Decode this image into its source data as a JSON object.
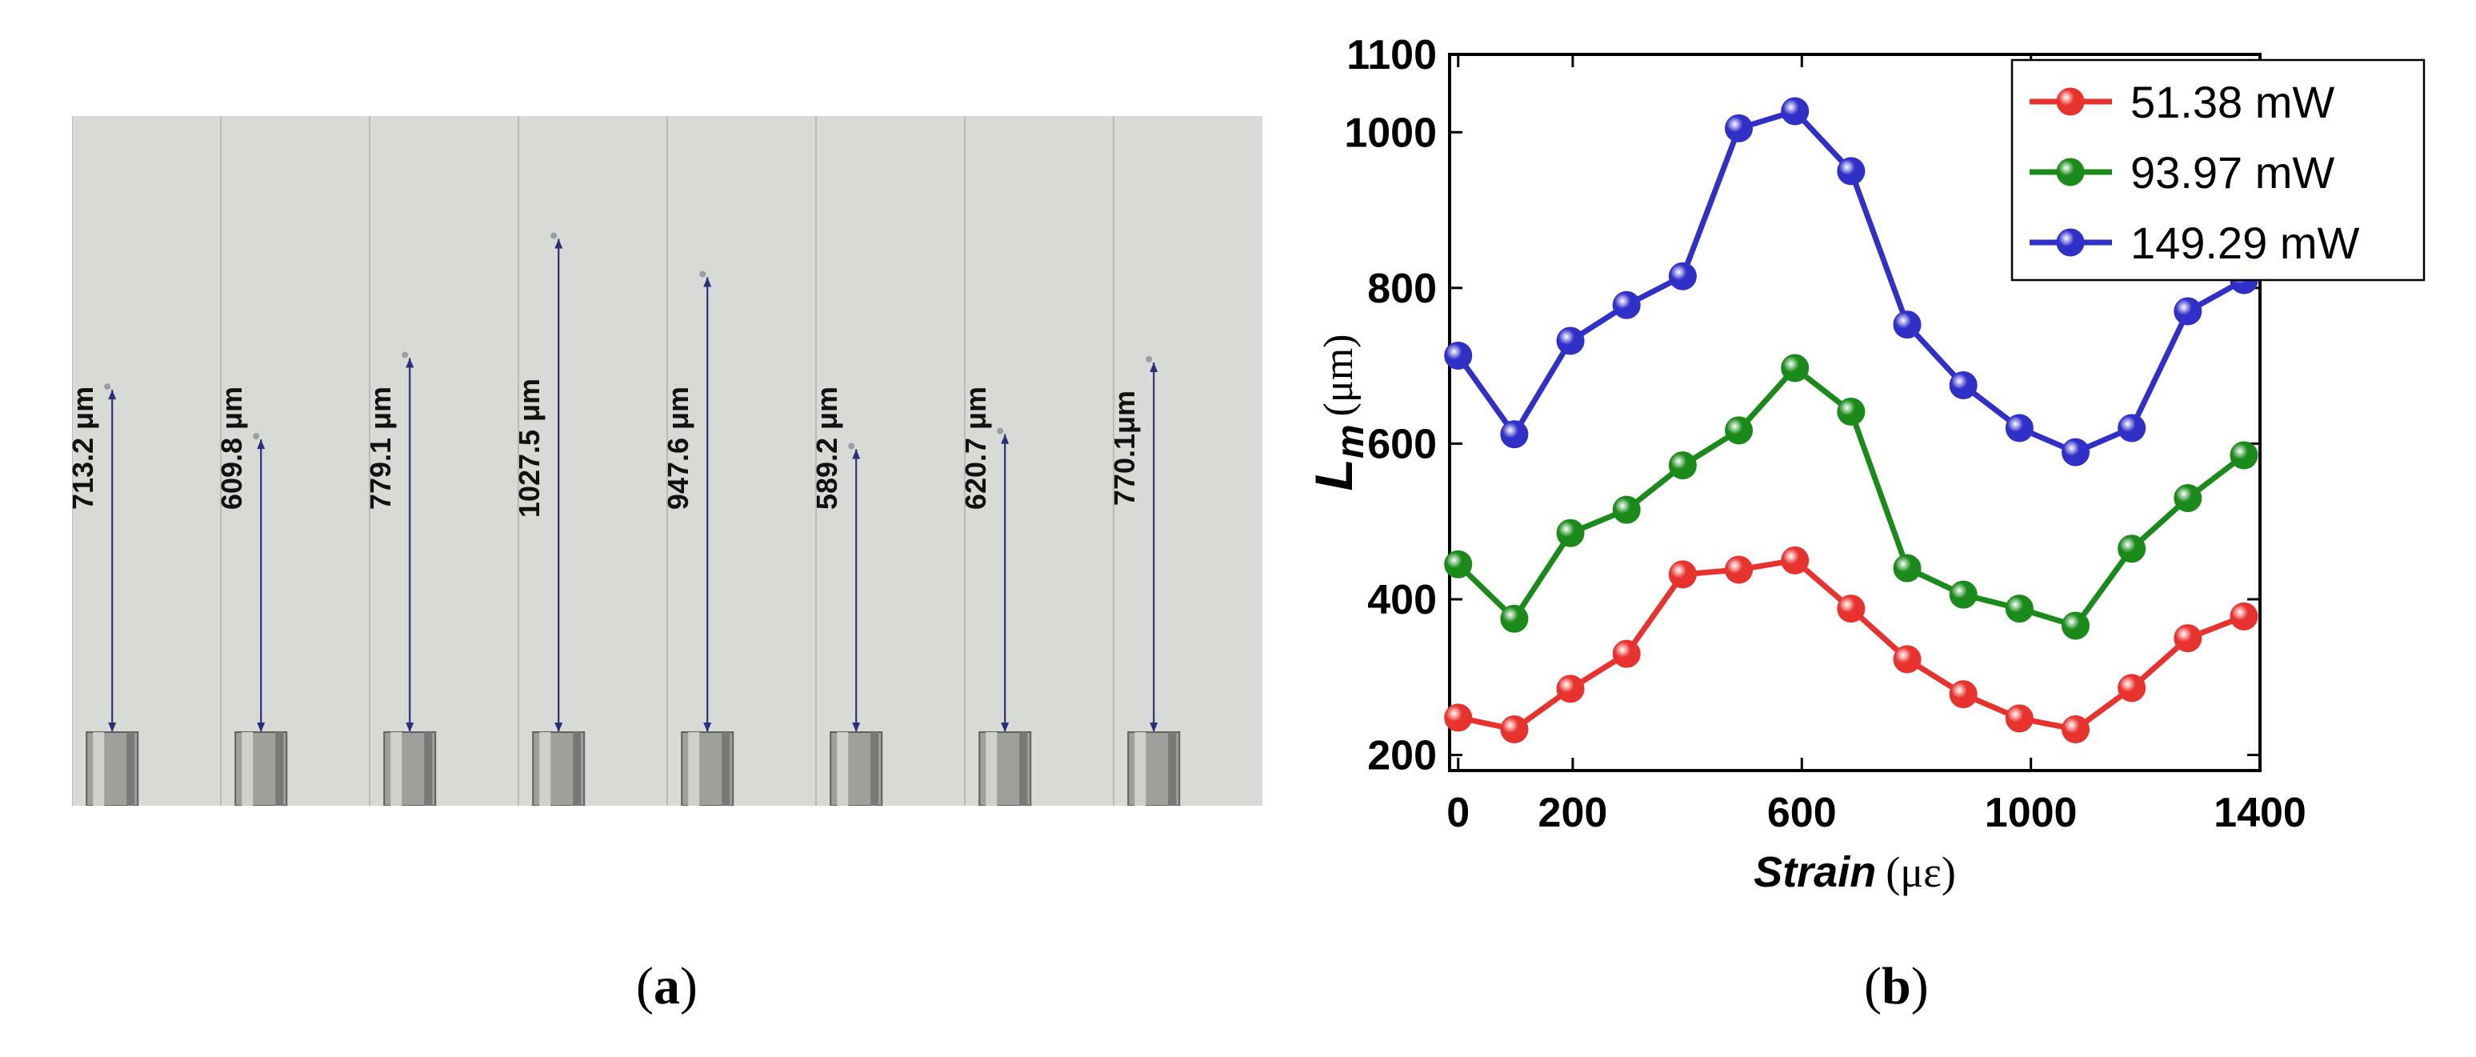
{
  "panel_a": {
    "label_open": "(",
    "label_letter": "a",
    "label_close": ")",
    "measurements": [
      "713.2 μm",
      "609.8 μm",
      "779.1 μm",
      "1027.5 μm",
      "947.6 μm",
      "589.2 μm",
      "620.7 μm",
      "770.1μm"
    ],
    "lengths_um": [
      713.2,
      609.8,
      779.1,
      1027.5,
      947.6,
      589.2,
      620.7,
      770.1
    ]
  },
  "panel_b": {
    "label_open": "(",
    "label_letter": "b",
    "label_close": ")"
  },
  "chart_data": {
    "type": "line",
    "xlabel_main": "Strain",
    "xlabel_unit": "(με)",
    "ylabel_main": "L",
    "ylabel_sub": "m",
    "ylabel_unit": "(μm)",
    "xlim": [
      -15,
      1400
    ],
    "ylim": [
      180,
      1100
    ],
    "xticks": [
      0,
      200,
      600,
      1000,
      1400
    ],
    "yticks": [
      200,
      400,
      600,
      800,
      1000,
      1100
    ],
    "grid": false,
    "legend_position": "top-right",
    "x": [
      0,
      98,
      196,
      294,
      392,
      490,
      588,
      686,
      784,
      882,
      980,
      1078,
      1176,
      1274,
      1372
    ],
    "series": [
      {
        "name": "51.38 mW",
        "color": "#e8322e",
        "values": [
          248,
          233,
          285,
          330,
          432,
          438,
          450,
          388,
          323,
          278,
          247,
          233,
          286,
          350,
          378
        ]
      },
      {
        "name": "93.97 mW",
        "color": "#1a8a1a",
        "values": [
          445,
          375,
          485,
          515,
          572,
          617,
          697,
          641,
          440,
          406,
          388,
          366,
          465,
          530,
          585
        ]
      },
      {
        "name": "149.29 mW",
        "color": "#3030c8",
        "values": [
          713,
          612,
          732,
          778,
          815,
          1005,
          1027,
          950,
          753,
          675,
          620,
          589,
          620,
          770,
          810
        ]
      }
    ]
  }
}
